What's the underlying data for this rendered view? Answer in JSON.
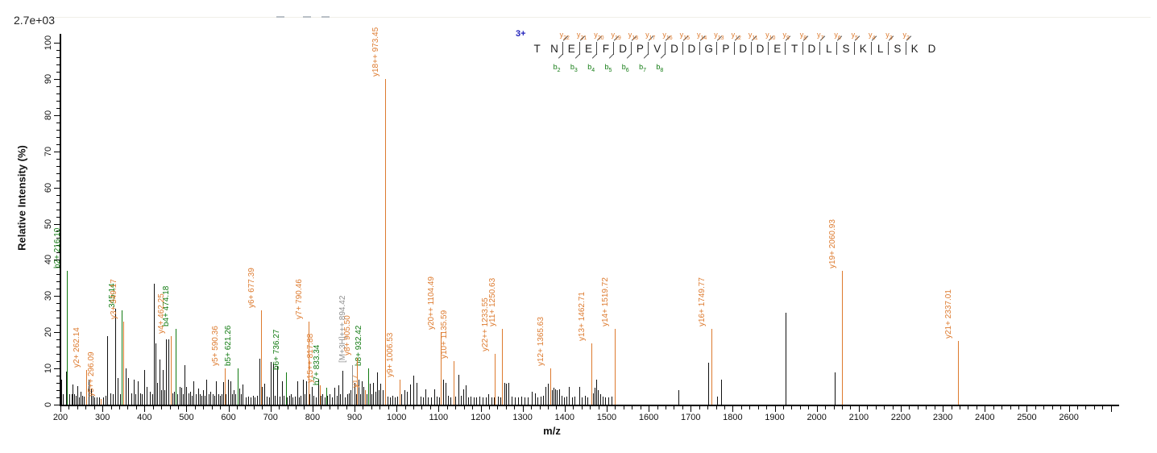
{
  "header": {
    "intensity_scale": "2.7e+03"
  },
  "axes": {
    "y": {
      "label": "Relative Intensity (%)"
    },
    "x": {
      "label": "m/z"
    }
  },
  "colors": {
    "y_ion": "#dd7a2e",
    "b_ion": "#117a11",
    "precursor": "#8f8f8f",
    "peak": "#111111",
    "charge_label": "#2222bb"
  },
  "peptide": {
    "charge": "3+",
    "residues": [
      "T",
      "N",
      "E",
      "E",
      "F",
      "D",
      "P",
      "V",
      "D",
      "D",
      "G",
      "P",
      "D",
      "D",
      "E",
      "T",
      "D",
      "L",
      "S",
      "K",
      "L",
      "S",
      "K",
      "D"
    ],
    "y_ion_marks": [
      {
        "gap": 2,
        "label": "y22"
      },
      {
        "gap": 3,
        "label": "y21"
      },
      {
        "gap": 4,
        "label": "y20"
      },
      {
        "gap": 5,
        "label": "y19"
      },
      {
        "gap": 6,
        "label": "y18"
      },
      {
        "gap": 7,
        "label": "y17"
      },
      {
        "gap": 8,
        "label": "y16"
      },
      {
        "gap": 9,
        "label": "y15"
      },
      {
        "gap": 10,
        "label": "y14"
      },
      {
        "gap": 11,
        "label": "y13"
      },
      {
        "gap": 12,
        "label": "y12"
      },
      {
        "gap": 13,
        "label": "y11"
      },
      {
        "gap": 14,
        "label": "y10"
      },
      {
        "gap": 15,
        "label": "y9"
      },
      {
        "gap": 16,
        "label": "y8"
      },
      {
        "gap": 17,
        "label": "y7"
      },
      {
        "gap": 18,
        "label": "y6"
      },
      {
        "gap": 19,
        "label": "y5"
      },
      {
        "gap": 20,
        "label": "y4"
      },
      {
        "gap": 21,
        "label": "y3"
      },
      {
        "gap": 22,
        "label": "y2"
      }
    ],
    "b_ion_marks": [
      {
        "gap": 2,
        "label": "b2"
      },
      {
        "gap": 3,
        "label": "b3"
      },
      {
        "gap": 4,
        "label": "b4"
      },
      {
        "gap": 5,
        "label": "b5"
      },
      {
        "gap": 6,
        "label": "b6"
      },
      {
        "gap": 7,
        "label": "b7"
      },
      {
        "gap": 8,
        "label": "b8"
      }
    ]
  },
  "chart_data": {
    "type": "bar",
    "title": "",
    "xlabel": "m/z",
    "ylabel": "Relative Intensity (%)",
    "xlim": [
      200,
      2700
    ],
    "ylim": [
      0,
      100
    ],
    "x_major_tick_step": 100,
    "x_minor_tick_step": 20,
    "y_major_tick_step": 10,
    "y_minor_tick_step": 2,
    "x_tick_labels": [
      200,
      300,
      400,
      500,
      600,
      700,
      800,
      900,
      1000,
      1100,
      1200,
      1300,
      1400,
      1500,
      1600,
      1700,
      1800,
      1900,
      2000,
      2100,
      2200,
      2300,
      2400,
      2500,
      2600
    ],
    "y_tick_labels": [
      0,
      10,
      20,
      30,
      40,
      50,
      60,
      70,
      80,
      90,
      100
    ],
    "base_peak_intensity": "2.7e+03",
    "legend": "off",
    "grid": "off",
    "annotated_peaks": [
      {
        "mz": 216.1,
        "intensity": 37,
        "label": "b2+ 216.10",
        "series": "b"
      },
      {
        "mz": 345.14,
        "intensity": 26,
        "label": "345.14",
        "series": "b"
      },
      {
        "mz": 474.18,
        "intensity": 21,
        "label": "b4+ 474.18",
        "series": "b"
      },
      {
        "mz": 621.26,
        "intensity": 10,
        "label": "b5+ 621.26",
        "series": "b"
      },
      {
        "mz": 736.27,
        "intensity": 9,
        "label": "b6+ 736.27",
        "series": "b"
      },
      {
        "mz": 833.34,
        "intensity": 4.6,
        "label": "b7+ 833.34",
        "series": "b"
      },
      {
        "mz": 932.42,
        "intensity": 10,
        "label": "b8+ 932.42",
        "series": "b"
      },
      {
        "mz": 262.14,
        "intensity": 9.5,
        "label": "y2+ 262.14",
        "series": "y"
      },
      {
        "mz": 296.09,
        "intensity": 1.5,
        "label": "y5++ 296.09",
        "series": "y"
      },
      {
        "mz": 349.17,
        "intensity": 23,
        "label": "y3+ 349.17",
        "series": "y"
      },
      {
        "mz": 462.25,
        "intensity": 19,
        "label": "y4+ 462.25",
        "series": "y"
      },
      {
        "mz": 590.36,
        "intensity": 10,
        "label": "y5+ 590.36",
        "series": "y"
      },
      {
        "mz": 677.39,
        "intensity": 26,
        "label": "y6+ 677.39",
        "series": "y"
      },
      {
        "mz": 790.46,
        "intensity": 23,
        "label": "y7+ 790.46",
        "series": "y"
      },
      {
        "mz": 817.88,
        "intensity": 5.4,
        "label": "y15++ 817.88",
        "series": "y"
      },
      {
        "mz": 905.5,
        "intensity": 13,
        "label": "y8+ 905.50",
        "series": "y"
      },
      {
        "mz": 924.92,
        "intensity": 4,
        "label": "y17",
        "series": "y"
      },
      {
        "mz": 973.45,
        "intensity": 90,
        "label": "y18++ 973.45",
        "series": "y"
      },
      {
        "mz": 1006.53,
        "intensity": 7,
        "label": "y9+ 1006.53",
        "series": "y"
      },
      {
        "mz": 1104.49,
        "intensity": 20,
        "label": "y20++ 1104.49",
        "series": "y"
      },
      {
        "mz": 1135.59,
        "intensity": 12,
        "label": "y10+ 1135.59",
        "series": "y"
      },
      {
        "mz": 1233.55,
        "intensity": 14,
        "label": "y22++ 1233.55",
        "series": "y"
      },
      {
        "mz": 1250.63,
        "intensity": 21,
        "label": "y11+ 1250.63",
        "series": "y"
      },
      {
        "mz": 1365.63,
        "intensity": 10,
        "label": "y12+ 1365.63",
        "series": "y"
      },
      {
        "mz": 1462.71,
        "intensity": 17,
        "label": "y13+ 1462.71",
        "series": "y"
      },
      {
        "mz": 1519.72,
        "intensity": 21,
        "label": "y14+ 1519.72",
        "series": "y"
      },
      {
        "mz": 1749.77,
        "intensity": 21,
        "label": "y16+ 1749.77",
        "series": "y"
      },
      {
        "mz": 2060.93,
        "intensity": 37,
        "label": "y19+ 2060.93",
        "series": "y"
      },
      {
        "mz": 2337.01,
        "intensity": 17.5,
        "label": "y21+ 2337.01",
        "series": "y"
      },
      {
        "mz": 894.42,
        "intensity": 11,
        "label": "[M+3H]+++ 894.42",
        "series": "precursor"
      }
    ],
    "unannotated_peaks": [
      [
        202,
        7
      ],
      [
        206,
        3
      ],
      [
        213,
        9.2
      ],
      [
        222,
        3
      ],
      [
        226,
        3
      ],
      [
        229,
        5.5
      ],
      [
        233,
        3
      ],
      [
        236,
        2.5
      ],
      [
        240,
        5.2
      ],
      [
        244,
        2
      ],
      [
        248,
        3.5
      ],
      [
        252,
        2.5
      ],
      [
        256,
        2.2
      ],
      [
        267,
        7
      ],
      [
        272,
        4.5
      ],
      [
        277,
        2.5
      ],
      [
        281,
        2
      ],
      [
        286,
        2
      ],
      [
        292,
        2
      ],
      [
        302,
        2
      ],
      [
        308,
        2.5
      ],
      [
        312,
        19
      ],
      [
        318,
        3.2
      ],
      [
        324,
        3
      ],
      [
        330,
        26.5
      ],
      [
        336,
        7.3
      ],
      [
        341,
        3
      ],
      [
        356,
        10
      ],
      [
        362,
        7.3
      ],
      [
        368,
        3.2
      ],
      [
        374,
        7
      ],
      [
        379,
        3
      ],
      [
        384,
        6.5
      ],
      [
        389,
        3.2
      ],
      [
        394,
        3
      ],
      [
        400,
        9.5
      ],
      [
        406,
        5
      ],
      [
        412,
        3.5
      ],
      [
        418,
        3
      ],
      [
        423,
        33.5
      ],
      [
        427,
        17
      ],
      [
        431,
        6
      ],
      [
        435,
        12.5
      ],
      [
        440,
        4
      ],
      [
        444,
        9.5
      ],
      [
        448,
        4
      ],
      [
        452,
        18
      ],
      [
        457,
        18
      ],
      [
        467,
        3.2
      ],
      [
        471,
        3.5
      ],
      [
        478,
        3
      ],
      [
        483,
        5
      ],
      [
        488,
        4.7
      ],
      [
        492,
        3
      ],
      [
        495,
        11
      ],
      [
        500,
        5
      ],
      [
        504,
        3.2
      ],
      [
        508,
        3.5
      ],
      [
        513,
        2.5
      ],
      [
        517,
        6.5
      ],
      [
        522,
        3
      ],
      [
        527,
        4.5
      ],
      [
        531,
        3
      ],
      [
        535,
        2.5
      ],
      [
        539,
        4
      ],
      [
        544,
        2.5
      ],
      [
        548,
        7
      ],
      [
        552,
        3
      ],
      [
        557,
        3.5
      ],
      [
        562,
        3
      ],
      [
        566,
        2.5
      ],
      [
        570,
        6.5
      ],
      [
        575,
        3
      ],
      [
        580,
        2.5
      ],
      [
        584,
        3
      ],
      [
        588,
        6.3
      ],
      [
        594,
        3
      ],
      [
        599,
        7
      ],
      [
        604,
        6.5
      ],
      [
        609,
        3
      ],
      [
        613,
        4
      ],
      [
        617,
        3
      ],
      [
        626,
        4.5
      ],
      [
        630,
        3
      ],
      [
        634,
        5.5
      ],
      [
        641,
        2
      ],
      [
        647,
        2.2
      ],
      [
        653,
        2
      ],
      [
        658,
        2.5
      ],
      [
        663,
        2
      ],
      [
        668,
        2.5
      ],
      [
        673,
        12.8
      ],
      [
        679,
        5
      ],
      [
        685,
        5.8
      ],
      [
        691,
        2.2
      ],
      [
        697,
        2
      ],
      [
        700,
        11.7
      ],
      [
        706,
        11.3
      ],
      [
        711,
        2.5
      ],
      [
        715,
        10.6
      ],
      [
        721,
        2.2
      ],
      [
        727,
        6.5
      ],
      [
        732,
        2.5
      ],
      [
        739,
        2
      ],
      [
        744,
        2.5
      ],
      [
        748,
        2.9
      ],
      [
        753,
        2
      ],
      [
        758,
        2.2
      ],
      [
        763,
        6.4
      ],
      [
        768,
        2
      ],
      [
        772,
        2.5
      ],
      [
        777,
        6.8
      ],
      [
        781,
        3
      ],
      [
        784,
        6.4
      ],
      [
        793,
        3
      ],
      [
        799,
        5
      ],
      [
        803,
        2.5
      ],
      [
        808,
        2
      ],
      [
        813,
        6.8
      ],
      [
        819,
        2.5
      ],
      [
        823,
        2.9
      ],
      [
        829,
        2
      ],
      [
        835,
        2.5
      ],
      [
        840,
        3
      ],
      [
        846,
        2
      ],
      [
        852,
        4.6
      ],
      [
        857,
        2.5
      ],
      [
        861,
        5.4
      ],
      [
        866,
        3
      ],
      [
        871,
        9.3
      ],
      [
        877,
        2
      ],
      [
        882,
        2.9
      ],
      [
        887,
        3.2
      ],
      [
        891,
        4
      ],
      [
        899,
        6
      ],
      [
        903,
        3
      ],
      [
        910,
        7
      ],
      [
        914,
        3
      ],
      [
        917,
        6.4
      ],
      [
        921,
        5
      ],
      [
        925,
        4
      ],
      [
        929,
        3
      ],
      [
        936,
        5.7
      ],
      [
        940,
        3
      ],
      [
        944,
        6
      ],
      [
        949,
        3.5
      ],
      [
        953,
        8.9
      ],
      [
        958,
        4
      ],
      [
        962,
        5.7
      ],
      [
        967,
        4
      ],
      [
        972,
        3
      ],
      [
        979,
        2.2
      ],
      [
        984,
        2
      ],
      [
        990,
        2.5
      ],
      [
        996,
        2
      ],
      [
        1001,
        2.2
      ],
      [
        1012,
        3
      ],
      [
        1018,
        4
      ],
      [
        1025,
        3.5
      ],
      [
        1032,
        5.5
      ],
      [
        1040,
        8
      ],
      [
        1047,
        6
      ],
      [
        1057,
        2.2
      ],
      [
        1062,
        2
      ],
      [
        1068,
        4.3
      ],
      [
        1074,
        2
      ],
      [
        1082,
        2
      ],
      [
        1089,
        4.3
      ],
      [
        1095,
        2.2
      ],
      [
        1101,
        2
      ],
      [
        1110,
        6.8
      ],
      [
        1116,
        6
      ],
      [
        1122,
        2.5
      ],
      [
        1129,
        2
      ],
      [
        1140,
        2.2
      ],
      [
        1148,
        8.2
      ],
      [
        1153,
        2.5
      ],
      [
        1158,
        4.3
      ],
      [
        1164,
        5.4
      ],
      [
        1170,
        2
      ],
      [
        1176,
        2.2
      ],
      [
        1183,
        2
      ],
      [
        1190,
        2
      ],
      [
        1198,
        2.2
      ],
      [
        1205,
        2
      ],
      [
        1212,
        2
      ],
      [
        1218,
        2.9
      ],
      [
        1225,
        2
      ],
      [
        1232,
        2
      ],
      [
        1241,
        2.2
      ],
      [
        1247,
        2
      ],
      [
        1256,
        6
      ],
      [
        1261,
        5.7
      ],
      [
        1267,
        6
      ],
      [
        1274,
        2.2
      ],
      [
        1281,
        2
      ],
      [
        1290,
        2
      ],
      [
        1297,
        2.2
      ],
      [
        1305,
        2
      ],
      [
        1313,
        2
      ],
      [
        1322,
        3.6
      ],
      [
        1329,
        3.2
      ],
      [
        1335,
        2
      ],
      [
        1342,
        2.2
      ],
      [
        1349,
        2.5
      ],
      [
        1355,
        5
      ],
      [
        1360,
        5.7
      ],
      [
        1370,
        4
      ],
      [
        1374,
        4.6
      ],
      [
        1378,
        4.3
      ],
      [
        1382,
        4
      ],
      [
        1387,
        4.3
      ],
      [
        1392,
        2.5
      ],
      [
        1398,
        2
      ],
      [
        1404,
        2.2
      ],
      [
        1410,
        5
      ],
      [
        1417,
        2
      ],
      [
        1424,
        2.2
      ],
      [
        1434,
        5
      ],
      [
        1441,
        2
      ],
      [
        1448,
        2.5
      ],
      [
        1455,
        2
      ],
      [
        1467,
        3.2
      ],
      [
        1471,
        4.6
      ],
      [
        1475,
        6.8
      ],
      [
        1479,
        4
      ],
      [
        1484,
        3
      ],
      [
        1490,
        2.2
      ],
      [
        1497,
        2
      ],
      [
        1504,
        2
      ],
      [
        1512,
        2.2
      ],
      [
        1671,
        4.1
      ],
      [
        1742,
        11.5
      ],
      [
        1762,
        2.2
      ],
      [
        1773,
        6.8
      ],
      [
        1925,
        25.5
      ],
      [
        2043,
        9
      ]
    ]
  }
}
